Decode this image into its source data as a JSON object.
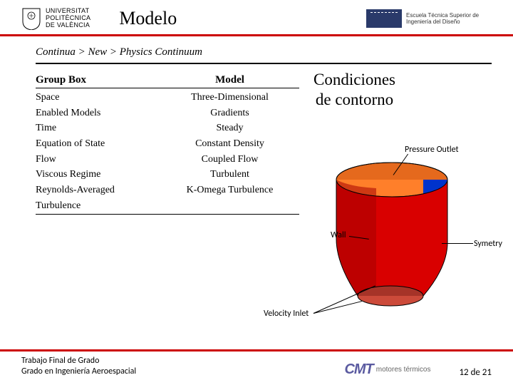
{
  "header": {
    "upv_line1": "Universitat",
    "upv_line2": "Politècnica",
    "upv_line3": "de València",
    "title": "Modelo",
    "etsid": "Escuela Técnica Superior de Ingeniería del Diseño"
  },
  "breadcrumb": "Continua > New > Physics Continuum",
  "table": {
    "h1": "Group Box",
    "h2": "Model",
    "rows": [
      {
        "a": "Space",
        "b": "Three-Dimensional"
      },
      {
        "a": "Enabled Models",
        "b": "Gradients"
      },
      {
        "a": "Time",
        "b": "Steady"
      },
      {
        "a": "Equation of State",
        "b": "Constant Density"
      },
      {
        "a": "Flow",
        "b": "Coupled Flow"
      },
      {
        "a": "Viscous Regime",
        "b": "Turbulent"
      },
      {
        "a": "Reynolds-Averaged Turbulence",
        "b": "K-Omega Turbulence"
      }
    ]
  },
  "cond_title_l1": "Condiciones",
  "cond_title_l2": "de contorno",
  "labels": {
    "pressure": "Pressure Outlet",
    "wall": "Wall",
    "symmetry": "Symetry",
    "velocity": "Velocity Inlet"
  },
  "diagram": {
    "top_fill": "#ff7f2a",
    "top_fill_back": "#e5691d",
    "top_stroke": "#000000",
    "front_fill": "#d90000",
    "front_fill_dark": "#a60000",
    "side_fill": "#0033cc",
    "bottom_fill": "#cc4a3a",
    "bottom_fill_dark": "#a63328"
  },
  "footer": {
    "l1": "Trabajo Final de Grado",
    "l2": "Grado en Ingeniería Aeroespacial",
    "page": "12 de 21",
    "cmt_text": "motores térmicos",
    "cmt_mark": "CMT"
  }
}
